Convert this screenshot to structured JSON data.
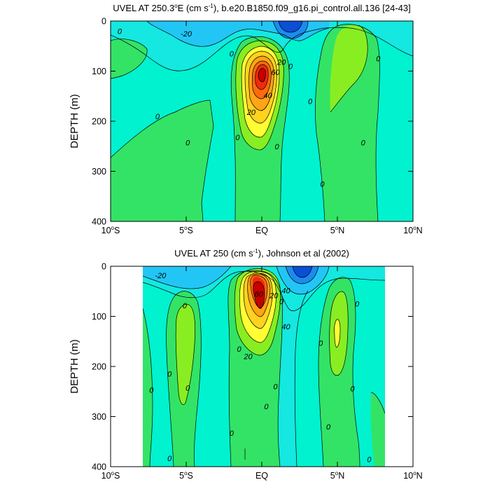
{
  "colors": {
    "c_neg40": "#0a4fd6",
    "c_neg30": "#1a8cf0",
    "c_neg20": "#22c6f5",
    "c_neg10": "#14e8e0",
    "c_zero": "#00f2cf",
    "c_pos0": "#33e366",
    "c_pos10": "#88ee22",
    "c_pos20": "#ffff33",
    "c_pos30": "#ffd21f",
    "c_pos40": "#ffa515",
    "c_pos50": "#ff6a0f",
    "c_pos60": "#f02a0a",
    "c_pos70": "#c80000",
    "contour": "#000000"
  },
  "chart_data": [
    {
      "type": "contour",
      "title": "UVEL AT 250.3°E (cm s-1), b.e20.B1850.f09_g16.pi_control.all.136 [24-43]",
      "title_parts": [
        "UVEL AT 250.3",
        "o",
        "E (cm s",
        "-1",
        "), b.e20.B1850.f09_g16.pi_control.all.136 [24-43]"
      ],
      "ylabel": "DEPTH (m)",
      "xlim": [
        -10,
        10
      ],
      "ylim": [
        400,
        0
      ],
      "x_ticks": [
        -10,
        -5,
        0,
        5,
        10
      ],
      "x_tick_labels": [
        [
          "10",
          "o",
          "S"
        ],
        [
          "5",
          "o",
          "S"
        ],
        [
          "EQ"
        ],
        [
          "5",
          "o",
          "N"
        ],
        [
          "10",
          "o",
          "N"
        ]
      ],
      "y_ticks": [
        0,
        100,
        200,
        300,
        400
      ],
      "y_tick_labels": [
        "0",
        "100",
        "200",
        "300",
        "400"
      ],
      "contour_interval": 10,
      "features": [
        {
          "name": "Equatorial Undercurrent core",
          "lat": 0,
          "depth": 100,
          "max_value": 70
        },
        {
          "name": "westward surface flow",
          "lat": 2,
          "depth": 10,
          "value": -40
        },
        {
          "name": "northern subsurface countercurrent",
          "lat": 5,
          "depth": 80,
          "value": 10
        }
      ],
      "contour_labels": [
        {
          "text": "0",
          "lat": -9.4,
          "depth": 20
        },
        {
          "text": "-20",
          "lat": -5,
          "depth": 25
        },
        {
          "text": "0",
          "lat": -2,
          "depth": 65
        },
        {
          "text": "0",
          "lat": -6.9,
          "depth": 190
        },
        {
          "text": "0",
          "lat": -4.9,
          "depth": 243
        },
        {
          "text": "0",
          "lat": -1.6,
          "depth": 232
        },
        {
          "text": "20",
          "lat": 1.3,
          "depth": 82
        },
        {
          "text": "60",
          "lat": 0.9,
          "depth": 102
        },
        {
          "text": "40",
          "lat": 0.4,
          "depth": 148
        },
        {
          "text": "20",
          "lat": -0.7,
          "depth": 182
        },
        {
          "text": "0",
          "lat": 1.9,
          "depth": 90
        },
        {
          "text": "0",
          "lat": 1.0,
          "depth": 250
        },
        {
          "text": "0",
          "lat": 3.2,
          "depth": 160
        },
        {
          "text": "0",
          "lat": 4.0,
          "depth": 325
        },
        {
          "text": "0",
          "lat": 7.7,
          "depth": 75
        },
        {
          "text": "0",
          "lat": 6.7,
          "depth": 243
        }
      ]
    },
    {
      "type": "contour",
      "title": "UVEL AT 250 (cm s-1), Johnson et al (2002)",
      "title_parts": [
        "UVEL AT 250 (cm s",
        "-1",
        "), Johnson et al (2002)"
      ],
      "ylabel": "DEPTH (m)",
      "xlim": [
        -10,
        10
      ],
      "ylim": [
        400,
        0
      ],
      "data_lat_range": [
        -7.9,
        8.2
      ],
      "x_ticks": [
        -10,
        -5,
        0,
        5,
        10
      ],
      "x_tick_labels": [
        [
          "10",
          "o",
          "S"
        ],
        [
          "5",
          "o",
          "S"
        ],
        [
          "EQ"
        ],
        [
          "5",
          "o",
          "N"
        ],
        [
          "10",
          "o",
          "N"
        ]
      ],
      "y_ticks": [
        0,
        100,
        200,
        300,
        400
      ],
      "y_tick_labels": [
        "0",
        "100",
        "200",
        "300",
        "400"
      ],
      "contour_interval": 10,
      "features": [
        {
          "name": "Equatorial Undercurrent core",
          "lat": -0.2,
          "depth": 70,
          "max_value": 70
        },
        {
          "name": "westward surface flow",
          "lat": 2.3,
          "depth": 15,
          "value": -40
        },
        {
          "name": "northern subsurface countercurrent",
          "lat": 5,
          "depth": 140,
          "value": 20
        },
        {
          "name": "southern subsurface countercurrent",
          "lat": -5,
          "depth": 180,
          "value": 10
        }
      ],
      "contour_labels": [
        {
          "text": "-20",
          "lat": -6.7,
          "depth": 18
        },
        {
          "text": "0",
          "lat": -5.1,
          "depth": 78
        },
        {
          "text": "0",
          "lat": -6.1,
          "depth": 215
        },
        {
          "text": "0",
          "lat": -7.3,
          "depth": 247
        },
        {
          "text": "0",
          "lat": -4.9,
          "depth": 243
        },
        {
          "text": "0",
          "lat": -6.1,
          "depth": 383
        },
        {
          "text": "0",
          "lat": -1.5,
          "depth": 165
        },
        {
          "text": "0",
          "lat": -2.0,
          "depth": 333
        },
        {
          "text": "60",
          "lat": -0.2,
          "depth": 55
        },
        {
          "text": "20",
          "lat": 0.8,
          "depth": 58
        },
        {
          "text": "40",
          "lat": 1.6,
          "depth": 48
        },
        {
          "text": "40",
          "lat": 1.6,
          "depth": 120
        },
        {
          "text": "20",
          "lat": -0.9,
          "depth": 180
        },
        {
          "text": "0",
          "lat": 1.3,
          "depth": 70
        },
        {
          "text": "0",
          "lat": 0.9,
          "depth": 240
        },
        {
          "text": "0",
          "lat": 0.3,
          "depth": 280
        },
        {
          "text": "0",
          "lat": 3.9,
          "depth": 153
        },
        {
          "text": "0",
          "lat": 4.4,
          "depth": 320
        },
        {
          "text": "0",
          "lat": 6.3,
          "depth": 75
        },
        {
          "text": "0",
          "lat": 6.0,
          "depth": 244
        },
        {
          "text": "0",
          "lat": 7.1,
          "depth": 385
        }
      ]
    }
  ]
}
